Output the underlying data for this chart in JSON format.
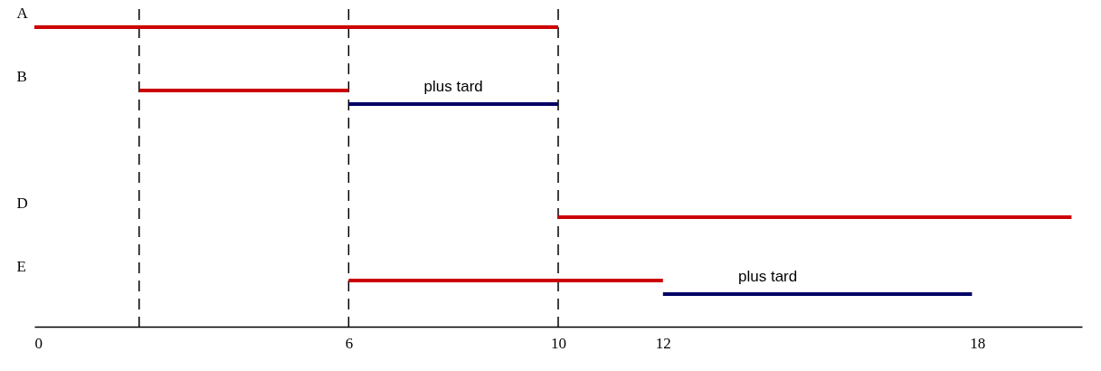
{
  "chart_data": {
    "type": "bar",
    "orientation": "horizontal",
    "categories": [
      "A",
      "B",
      null,
      "D",
      "E"
    ],
    "series": [
      {
        "color": "#cc0000",
        "base": [
          0,
          2,
          null,
          10,
          6
        ],
        "values": [
          10,
          4,
          null,
          9.8,
          6
        ]
      },
      {
        "color": "#000066",
        "base": [
          null,
          6,
          null,
          null,
          12
        ],
        "values": [
          null,
          4,
          null,
          null,
          5.9
        ]
      }
    ],
    "xlim": [
      0,
      20
    ],
    "xticks": [
      0,
      6,
      10,
      12,
      18
    ],
    "ref_lines": [
      {
        "axis": "x",
        "value": 2,
        "line_style": "dashed"
      },
      {
        "axis": "x",
        "value": 6,
        "line_style": "dashed"
      },
      {
        "axis": "x",
        "value": 10,
        "line_style": "dashed"
      }
    ],
    "annotations": [
      {
        "text": "plus tard",
        "x": 8,
        "y": "B"
      },
      {
        "text": "plus tard",
        "x": 14,
        "y": "E"
      }
    ],
    "grid": false
  }
}
